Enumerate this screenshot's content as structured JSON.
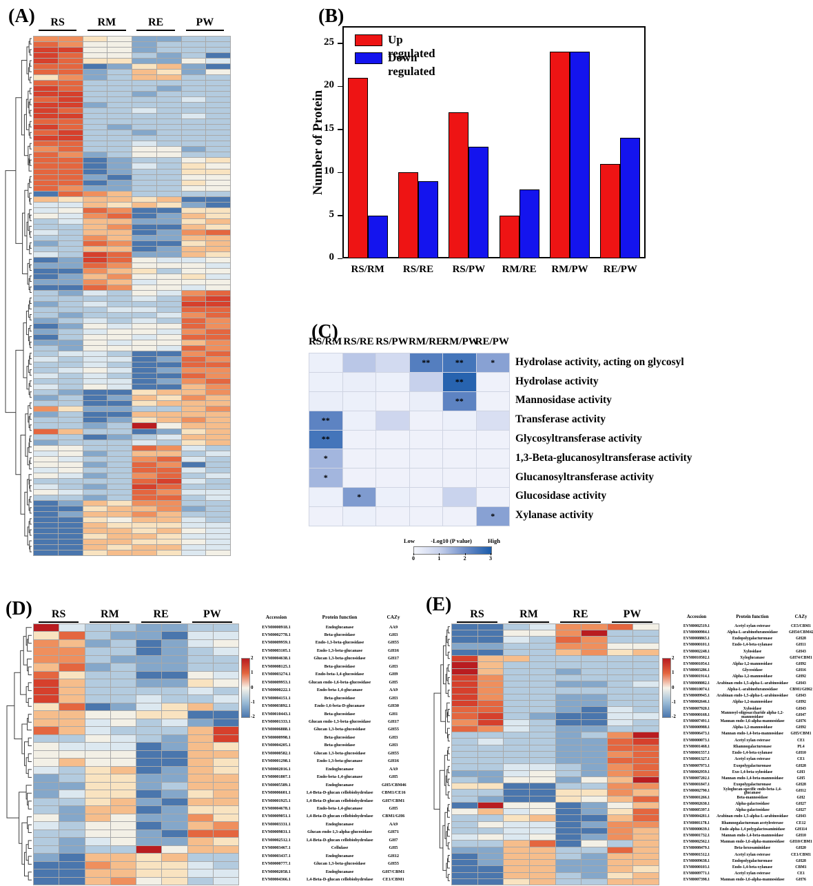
{
  "figure": {
    "panels": [
      {
        "label": "(A)"
      },
      {
        "label": "(B)"
      },
      {
        "label": "(C)"
      },
      {
        "label": "(D)"
      },
      {
        "label": "(E)"
      }
    ]
  },
  "chart_data": [
    {
      "id": "B",
      "type": "bar",
      "title": "",
      "xlabel": "",
      "ylabel": "Number of Protein",
      "categories": [
        "RS/RM",
        "RS/RE",
        "RS/PW",
        "RM/RE",
        "RM/PW",
        "RE/PW"
      ],
      "series": [
        {
          "name": "Up regulated",
          "color": "#ee1414",
          "values": [
            21,
            10,
            17,
            5,
            24,
            11
          ]
        },
        {
          "name": "Down regulated",
          "color": "#1414ee",
          "values": [
            5,
            9,
            13,
            8,
            24,
            14
          ]
        }
      ],
      "ylim": [
        0,
        27
      ],
      "yticks": [
        0,
        5,
        10,
        15,
        20,
        25
      ],
      "legend_position": "top-left",
      "grid": false
    },
    {
      "id": "C",
      "type": "heatmap",
      "columns": [
        "RS/RM",
        "RS/RE",
        "RS/PW",
        "RM/RE",
        "RM/PW",
        "RE/PW"
      ],
      "rows": [
        "Hydrolase activity, acting on glycosyl",
        "Hydrolase activity",
        "Mannosidase activity",
        "Transferase activity",
        "Glycosyltransferase activity",
        "1,3-Beta-glucanosyltransferase activity",
        "Glucanosyltransferase activity",
        "Glucosidase activity",
        "Xylanase activity"
      ],
      "values": [
        [
          0.15,
          1.15,
          0.75,
          2.3,
          2.5,
          1.7
        ],
        [
          0.15,
          0.2,
          0.15,
          1.0,
          2.85,
          0.1
        ],
        [
          0.2,
          0.15,
          0.1,
          0.2,
          2.2,
          0.1
        ],
        [
          2.2,
          0.15,
          0.85,
          0.1,
          0.15,
          0.6
        ],
        [
          2.5,
          0.1,
          0.1,
          0.1,
          0.1,
          0.1
        ],
        [
          1.4,
          0.1,
          0.1,
          0.1,
          0.1,
          0.1
        ],
        [
          1.4,
          0.1,
          0.1,
          0.1,
          0.1,
          0.1
        ],
        [
          0.15,
          1.8,
          0.15,
          0.1,
          0.95,
          0.1
        ],
        [
          0.1,
          0.15,
          0.1,
          0.1,
          0.1,
          1.7
        ]
      ],
      "stars": [
        [
          "",
          "",
          "",
          "**",
          "**",
          "*"
        ],
        [
          "",
          "",
          "",
          "",
          "**",
          ""
        ],
        [
          "",
          "",
          "",
          "",
          "**",
          ""
        ],
        [
          "**",
          "",
          "",
          "",
          "",
          ""
        ],
        [
          "**",
          "",
          "",
          "",
          "",
          ""
        ],
        [
          "*",
          "",
          "",
          "",
          "",
          ""
        ],
        [
          "*",
          "",
          "",
          "",
          "",
          ""
        ],
        [
          "",
          "*",
          "",
          "",
          "",
          ""
        ],
        [
          "",
          "",
          "",
          "",
          "",
          "*"
        ]
      ],
      "colorbar": {
        "low": "Low",
        "label": "-Log10 (P value)",
        "high": "High",
        "ticks": [
          0,
          1,
          2,
          3
        ],
        "range": [
          0,
          3
        ],
        "stops": [
          "#f3f5fc",
          "#c7d1ec",
          "#6d8dc8",
          "#1b5cab"
        ]
      }
    },
    {
      "id": "A",
      "type": "heatmap",
      "columns": [
        "RS",
        "RM",
        "RE",
        "PW"
      ],
      "cols_per_group": 2,
      "palette": [
        "#b91c20",
        "#d6402c",
        "#e4663f",
        "#ef8f5d",
        "#f6bd8b",
        "#f9e3c0",
        "#f3f0e6",
        "#dce8f0",
        "#b3cbdf",
        "#84a7ca",
        "#4a76ad"
      ],
      "cells": [
        "33569988",
        "23669888",
        "11669888",
        "1266898a",
        "12559967",
        "22a9549a",
        "22984596",
        "53984488",
        "22888888",
        "12888988",
        "11889888",
        "21888878",
        "11988888",
        "12887888",
        "11888878",
        "22888888",
        "12898888",
        "21889888",
        "11888888",
        "22887888",
        "32886698",
        "23986688",
        "22a98865",
        "22a97856",
        "22a98855",
        "229a8866",
        "22a98856",
        "23998866",
        "a2348888",
        "454454aa",
        "7745459a",
        "7623aa55",
        "6732a945",
        "87449954",
        "8843aa45",
        "7844a932",
        "88349944",
        "9823aa54",
        "8844a944",
        "78129945",
        "a9126776",
        "99236667",
        "aa345866",
        "a9436657",
        "99347666",
        "aa236676",
        "89786732",
        "88887821",
        "98788811",
        "88877822",
        "89888732",
        "98787823",
        "a9676623",
        "98766732",
        "a8667622",
        "99676643",
        "89666723",
        "8778aa32",
        "7877a923",
        "8878aa22",
        "8767a933",
        "7878aa23",
        "8877a932",
        "7867aa43",
        "89aa5443",
        "98a94534",
        "88aa5444",
        "35998843",
        "98aa4444",
        "88a95434",
        "88980644",
        "2488a954",
        "88a98744",
        "98887854",
        "66882378",
        "76984487",
        "67883278",
        "669823a8",
        "76882278",
        "67983287",
        "88882178",
        "78981288",
        "67882377",
        "88982287",
        "a9453388",
        "aa544398",
        "a9443488",
        "aa564478",
        "aa455577",
        "aa445467",
        "aa544577",
        "aa445567",
        "aa454477",
        "aa544576"
      ]
    },
    {
      "id": "D",
      "type": "heatmap",
      "columns": [
        "RS",
        "RM",
        "RE",
        "PW"
      ],
      "cols_per_group": 2,
      "colorbar": {
        "ticks": [
          2,
          1,
          0,
          -1,
          -2
        ],
        "range": [
          -2,
          2
        ]
      },
      "table": {
        "headers": [
          "Accession",
          "Protein function",
          "CAZy"
        ],
        "rows": [
          {
            "accession": "EVM0000918.1",
            "function": "Endoglucanase",
            "cazy": "AA9"
          },
          {
            "accession": "EVM0002778.1",
            "function": "Beta-glucosidase",
            "cazy": "GH3"
          },
          {
            "accession": "EVM0009959.1",
            "function": "Endo-1,3-beta-glucosidase",
            "cazy": "GH55"
          },
          {
            "accession": "EVM0003105.1",
            "function": "Endo-1,3-beta-glucanase",
            "cazy": "GH16"
          },
          {
            "accession": "EVM0004638.1",
            "function": "Glucan 1,3-beta-glucosidase",
            "cazy": "GH17"
          },
          {
            "accession": "EVM0008125.1",
            "function": "Beta-glucosidase",
            "cazy": "GH3"
          },
          {
            "accession": "EVM0003274.1",
            "function": "Endo-beta-1,4-glucosidase",
            "cazy": "GH9"
          },
          {
            "accession": "EVM0009953.1",
            "function": "Glucan endo-1,6-beta-glucosidase",
            "cazy": "GH5"
          },
          {
            "accession": "EVM0000222.1",
            "function": "Endo-beta-1,4-glucanase",
            "cazy": "AA9"
          },
          {
            "accession": "EVM0004151.1",
            "function": "Beta-glucosidase",
            "cazy": "GH3"
          },
          {
            "accession": "EVM0003892.1",
            "function": "Endo-1,6-beta-D-glucanase",
            "cazy": "GH30"
          },
          {
            "accession": "EVM0010443.1",
            "function": "Beta-glucosidase",
            "cazy": "GH1"
          },
          {
            "accession": "EVM0001333.1",
            "function": "Glucan endo-1,3-beta-glucosidase",
            "cazy": "GH17"
          },
          {
            "accession": "EVM0006888.1",
            "function": "Glucan 1,3-beta-glucosidase",
            "cazy": "GH55"
          },
          {
            "accession": "EVM0000998.1",
            "function": "Beta-glucosidase",
            "cazy": "GH3"
          },
          {
            "accession": "EVM0004205.1",
            "function": "Beta-glucosidase",
            "cazy": "GH3"
          },
          {
            "accession": "EVM0000582.1",
            "function": "Glucan 1,3-beta-glucosidase",
            "cazy": "GH55"
          },
          {
            "accession": "EVM0001298.1",
            "function": "Endo-1,3-beta-glucanase",
            "cazy": "GH16"
          },
          {
            "accession": "EVM0002016.1",
            "function": "Endoglucanase",
            "cazy": "AA9"
          },
          {
            "accession": "EVM0001807.1",
            "function": "Endo-beta-1,4-glucanase",
            "cazy": "GH5"
          },
          {
            "accession": "EVM0005589.1",
            "function": "Endoglucanase",
            "cazy": "GH5/CBM46"
          },
          {
            "accession": "EVM0006601.1",
            "function": "1,4-Beta-D-glucan cellobiohydrolase",
            "cazy": "CBM1/CE16"
          },
          {
            "accession": "EVM0001925.1",
            "function": "1,4-Beta-D-glucan cellobiohydrolase",
            "cazy": "GH7/CBM1"
          },
          {
            "accession": "EVM0004678.1",
            "function": "Endo-beta-1,4-glucanase",
            "cazy": "GH5"
          },
          {
            "accession": "EVM0009051.1",
            "function": "1,4-Beta-D-glucan cellobiohydrolase",
            "cazy": "CBM1/GH6"
          },
          {
            "accession": "EVM0003331.1",
            "function": "Endoglucanase",
            "cazy": "AA9"
          },
          {
            "accession": "EVM0009831.1",
            "function": "Glucan endo-1,3-alpha-glucosidase",
            "cazy": "GH71"
          },
          {
            "accession": "EVM0002512.1",
            "function": "1,4-Beta-D-glucan cellobiohydrolase",
            "cazy": "GH7"
          },
          {
            "accession": "EVM0003467.1",
            "function": "Cellulase",
            "cazy": "GH5"
          },
          {
            "accession": "EVM0003437.1",
            "function": "Endoglucanase",
            "cazy": "GH12"
          },
          {
            "accession": "EVM0000777.1",
            "function": "Glucan 1,3-beta-glucosidase",
            "cazy": "GH55"
          },
          {
            "accession": "EVM0002058.1",
            "function": "Endoglucanase",
            "cazy": "GH7/CBM1"
          },
          {
            "accession": "EVM0004366.1",
            "function": "1,4-Beta-D-glucan cellobiohydrolase",
            "cazy": "CE1/CBM1"
          }
        ]
      },
      "cells": [
        "07889988",
        "52899a77",
        "3498a976",
        "3388a987",
        "33899988",
        "42989988",
        "2588aa67",
        "14889956",
        "14888878",
        "14887887",
        "52a97548",
        "446655aa",
        "4476879a",
        "24788841",
        "88678941",
        "6777a945",
        "6666aa44",
        "6466aa45",
        "7854a945",
        "98559944",
        "99559844",
        "9755a954",
        "88549a44",
        "8944a955",
        "69469935",
        "7866a943",
        "88669a22",
        "89769945",
        "89880644",
        "9a445488",
        "aa345578",
        "aa445577",
        "aa436587"
      ]
    },
    {
      "id": "E",
      "type": "heatmap",
      "columns": [
        "RS",
        "RM",
        "RE",
        "PW"
      ],
      "cols_per_group": 2,
      "colorbar": {
        "ticks": [
          2,
          1,
          0,
          -1,
          -2
        ],
        "range": [
          -2,
          2
        ]
      },
      "table": {
        "headers": [
          "Accession",
          "Protein function",
          "CAZy"
        ],
        "rows": [
          {
            "accession": "EVM0002519.1",
            "function": "Acetyl xylan esterase",
            "cazy": "CE5/CBM1"
          },
          {
            "accession": "EVM0000984.1",
            "function": "Alpha-L-arabinofuranosidase",
            "cazy": "GH54/CBM42"
          },
          {
            "accession": "EVM0008865.1",
            "function": "Endopolygalacturonase",
            "cazy": "GH28"
          },
          {
            "accession": "EVM0000101.1",
            "function": "Endo-1,4-beta-xylanase",
            "cazy": "GH11"
          },
          {
            "accession": "EVM0002248.1",
            "function": "Xylosidase",
            "cazy": "GH43"
          },
          {
            "accession": "EVM0010502.1",
            "function": "Xyloglucanase",
            "cazy": "GH74/CBM1"
          },
          {
            "accession": "EVM0001054.1",
            "function": "Alpha-1,2-mannosidase",
            "cazy": "GH92"
          },
          {
            "accession": "EVM0003286.1",
            "function": "Glycosidase",
            "cazy": "GH16"
          },
          {
            "accession": "EVM0001914.1",
            "function": "Alpha-1,2-mannosidase",
            "cazy": "GH92"
          },
          {
            "accession": "EVM0008082.1",
            "function": "Arabinan endo-1,5-alpha-L-arabinosidase",
            "cazy": "GH43"
          },
          {
            "accession": "EVM0010074.1",
            "function": "Alpha-L-arabinofuranosidase",
            "cazy": "CBM1/GH62"
          },
          {
            "accession": "EVM0009945.1",
            "function": "Arabinan endo-1,5-alpha-L-arabinosidase",
            "cazy": "GH43"
          },
          {
            "accession": "EVM0002646.1",
            "function": "Alpha-1,2-mannosidase",
            "cazy": "GH92"
          },
          {
            "accession": "EVM0007920.1",
            "function": "Xylosidase",
            "cazy": "GH43"
          },
          {
            "accession": "EVM0000168.1",
            "function": "Mannosyl-oligosaccharide alpha-1,2-mannosidase",
            "cazy": "GH47"
          },
          {
            "accession": "EVM0007491.1",
            "function": "Mannan endo-1,6-alpha-mannosidase",
            "cazy": "GH76"
          },
          {
            "accession": "EVM0000988.1",
            "function": "Alpha-1,2-mannosidase",
            "cazy": "GH92"
          },
          {
            "accession": "EVM0006473.1",
            "function": "Mannan endo-1,4-beta-mannosidase",
            "cazy": "GH5/CBM1"
          },
          {
            "accession": "EVM0000073.1",
            "function": "Acetyl xylan esterase",
            "cazy": "CE1"
          },
          {
            "accession": "EVM0001468.1",
            "function": "Rhamnogalacturonase",
            "cazy": "PL4"
          },
          {
            "accession": "EVM0001557.1",
            "function": "Endo-1,4-beta-xylanase",
            "cazy": "GH10"
          },
          {
            "accession": "EVM0001327.1",
            "function": "Acetyl xylan esterase",
            "cazy": "CE1"
          },
          {
            "accession": "EVM0007973.1",
            "function": "Exopolygalacturonase",
            "cazy": "GH28"
          },
          {
            "accession": "EVM0002959.1",
            "function": "Exo-1,4-beta-xylosidase",
            "cazy": "GH3"
          },
          {
            "accession": "EVM0007202.1",
            "function": "Mannan endo-1,4-beta-mannosidase",
            "cazy": "GH5"
          },
          {
            "accession": "EVM0001847.1",
            "function": "Exopolygalacturonase",
            "cazy": "GH28"
          },
          {
            "accession": "EVM0002790.1",
            "function": "Xyloglucan-specific endo-beta-1,4-glucanase",
            "cazy": "GH12"
          },
          {
            "accession": "EVM0001266.1",
            "function": "Beta-mannosidase",
            "cazy": "GH2"
          },
          {
            "accession": "EVM0002630.1",
            "function": "Alpha-galactosidase",
            "cazy": "GH27"
          },
          {
            "accession": "EVM0005397.1",
            "function": "Alpha-galactosidase",
            "cazy": "GH27"
          },
          {
            "accession": "EVM0004281.1",
            "function": "Arabinan endo-1,5-alpha-L-arabinosidase",
            "cazy": "GH43"
          },
          {
            "accession": "EVM0001178.1",
            "function": "Rhamnogalacturonan acetylesterase",
            "cazy": "CE12"
          },
          {
            "accession": "EVM0000639.1",
            "function": "Endo alpha-1,4 polygalactosaminidase",
            "cazy": "GH114"
          },
          {
            "accession": "EVM0001732.1",
            "function": "Mannan endo-1,4-beta-mannosidase",
            "cazy": "GH10"
          },
          {
            "accession": "EVM0002562.1",
            "function": "Mannan endo-1,6-alpha-mannosidase",
            "cazy": "GH10/CBM1"
          },
          {
            "accession": "EVM0008479.1",
            "function": "Beta-hexosaminidase",
            "cazy": "GH20"
          },
          {
            "accession": "EVM0001512.1",
            "function": "Acetyl xylan esterase",
            "cazy": "CE1/CBM1"
          },
          {
            "accession": "EVM0009638.1",
            "function": "Endopolygalacturonase",
            "cazy": "GH28"
          },
          {
            "accession": "EVM0000103.1",
            "function": "Endo-1,4-beta-xylanase",
            "cazy": "CBM1"
          },
          {
            "accession": "EVM0009771.1",
            "function": "Acetyl xylan esterase",
            "cazy": "CE1"
          },
          {
            "accession": "EVM0007398.1",
            "function": "Mannan endo-1,6-alpha-mannosidase",
            "cazy": "GH76"
          }
        ]
      },
      "cells": [
        "aa873326",
        "aa663088",
        "aa782388",
        "99883366",
        "aa884354",
        "14488888",
        "04888888",
        "04889888",
        "13888888",
        "13889987",
        "13888888",
        "13889988",
        "12889988",
        "22889a78",
        "2189aa77",
        "3178aa78",
        "23789988",
        "88889830",
        "87889921",
        "88889922",
        "88889932",
        "88889922",
        "88778932",
        "99768932",
        "89669640",
        "55aa8833",
        "88aa5534",
        "89aa5642",
        "a066a964",
        "6476a952",
        "8854aa42",
        "8677a933",
        "8877aa34",
        "7676a934",
        "8842a684",
        "99448824",
        "a9448944",
        "a9449944",
        "aa449945",
        "aa448954",
        "aa548844"
      ]
    }
  ]
}
